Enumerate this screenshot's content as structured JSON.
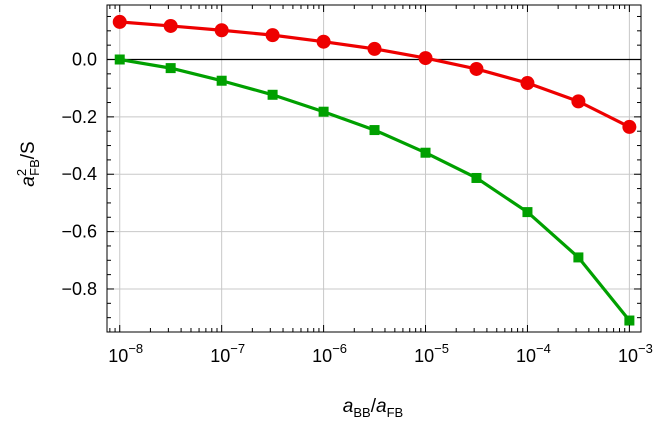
{
  "chart_data": {
    "type": "line",
    "x_scale": "log",
    "x": [
      1e-08,
      3.16e-08,
      1e-07,
      3.16e-07,
      1e-06,
      3.16e-06,
      1e-05,
      3.16e-05,
      0.0001,
      0.000316,
      0.001
    ],
    "xlim": [
      7.5e-09,
      0.0013
    ],
    "ylim": [
      -0.95,
      0.19
    ],
    "grid": true,
    "legend": "none",
    "zero_line": true,
    "x_ticks": [
      {
        "value": 1e-08,
        "base": "10",
        "exp": "−8"
      },
      {
        "value": 1e-07,
        "base": "10",
        "exp": "−7"
      },
      {
        "value": 1e-06,
        "base": "10",
        "exp": "−6"
      },
      {
        "value": 1e-05,
        "base": "10",
        "exp": "−5"
      },
      {
        "value": 0.0001,
        "base": "10",
        "exp": "−4"
      },
      {
        "value": 0.001,
        "base": "10",
        "exp": "−3"
      }
    ],
    "y_ticks": [
      {
        "value": 0.0,
        "label": "0.0"
      },
      {
        "value": -0.2,
        "label": "−0.2"
      },
      {
        "value": -0.4,
        "label": "−0.4"
      },
      {
        "value": -0.6,
        "label": "−0.6"
      },
      {
        "value": -0.8,
        "label": "−0.8"
      }
    ],
    "xlabel": {
      "a1": "a",
      "sub1": "BB",
      "slash": "/",
      "a2": "a",
      "sub2": "FB"
    },
    "ylabel": {
      "a": "a",
      "sup": "2",
      "sub": "FB",
      "rest": "/S"
    },
    "series": [
      {
        "marker": "circle",
        "color": "#ee0000",
        "values": [
          0.131,
          0.117,
          0.102,
          0.085,
          0.062,
          0.037,
          0.005,
          -0.033,
          -0.082,
          -0.146,
          -0.235
        ]
      },
      {
        "marker": "square",
        "color": "#00a000",
        "values": [
          0.0,
          -0.03,
          -0.074,
          -0.123,
          -0.182,
          -0.246,
          -0.325,
          -0.413,
          -0.532,
          -0.69,
          -0.91
        ]
      }
    ]
  }
}
